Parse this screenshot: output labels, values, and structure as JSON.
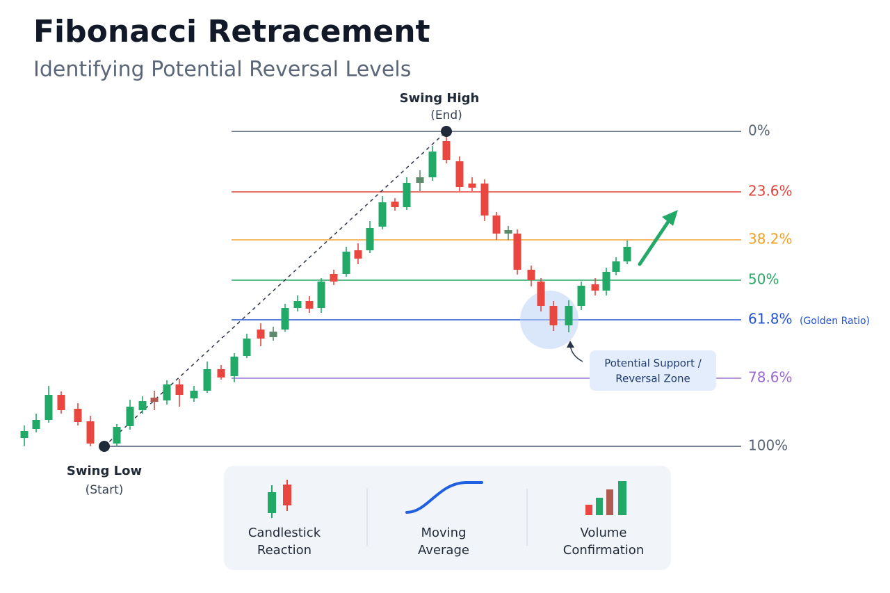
{
  "header": {
    "title": "Fibonacci Retracement",
    "subtitle": "Identifying Potential Reversal Levels"
  },
  "annotations": {
    "swing_high": {
      "label": "Swing High",
      "note": "(End)"
    },
    "swing_low": {
      "label": "Swing Low",
      "note": "(Start)"
    },
    "golden_ratio": "(Golden Ratio)",
    "zone": [
      "Potential Support /",
      "Reversal Zone"
    ]
  },
  "levels": [
    "0%",
    "23.6%",
    "38.2%",
    "50%",
    "61.8%",
    "78.6%",
    "100%"
  ],
  "legend": [
    [
      "Candlestick",
      "Reaction"
    ],
    [
      "Moving",
      "Average"
    ],
    [
      "Volume",
      "Confirmation"
    ]
  ]
}
